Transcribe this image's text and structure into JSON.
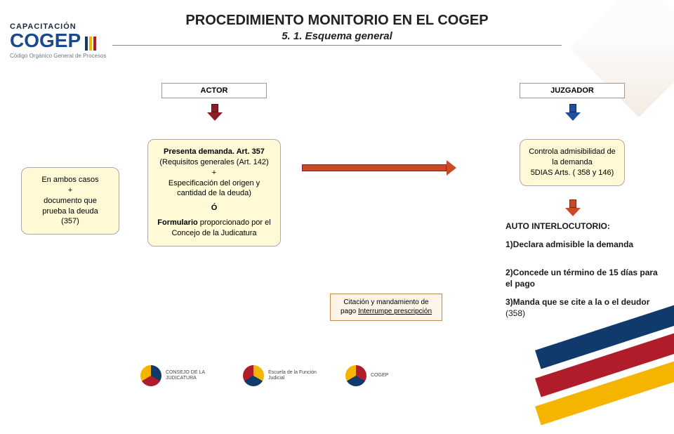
{
  "logo": {
    "line1": "CAPACITACIÓN",
    "line2": "COGEP",
    "tagline": "Código Orgánico General de Procesos",
    "bar_colors": [
      "#0f3a6b",
      "#f5b400",
      "#b11c2a"
    ]
  },
  "title": "PROCEDIMIENTO MONITORIO EN EL COGEP",
  "subtitle": "5. 1. Esquema general",
  "headers": {
    "actor": "ACTOR",
    "juzgador": "JUZGADOR"
  },
  "left_note": "En ambos casos\n+\ndocumento que\nprueba la deuda\n(357)",
  "mid_note_top": "Presenta demanda. Art. 357\n(Requisitos generales (Art. 142)\n+\nEspecificación del origen y cantidad de la deuda)",
  "mid_sep": "Ó",
  "mid_note_bottom": "Formulario proporcionado por el Concejo de la Judicatura",
  "right_note": "Controla admisibilidad de la demanda\n5DIAS Arts. ( 358 y 146)",
  "auto_title": "AUTO INTERLOCUTORIO:",
  "auto_items": [
    "1)Declara admisible la demanda",
    "2)Concede un término de 15 días para el pago",
    "3)Manda que se cite a la o el deudor\n(358)"
  ],
  "citacion": "Citación y mandamiento de pago Interrumpe prescripción",
  "arrows": {
    "actor_down": {
      "fill": "#8a1d26",
      "border": "#5a1018"
    },
    "juzgador_down": {
      "fill": "#1f4f9c",
      "border": "#0d2a55"
    },
    "long_right": {
      "fill": "#c94a28",
      "border": "#7a2a16",
      "length": 220
    },
    "right_down": {
      "fill": "#c94a28",
      "border": "#7a2a16"
    }
  },
  "footer": {
    "logos": [
      {
        "name": "CONSEJO DE LA JUDICATURA",
        "colors": [
          "#0f3a6b",
          "#b11c2a",
          "#f5b400"
        ]
      },
      {
        "name": "Escuela de la Función Judicial",
        "colors": [
          "#f5b400",
          "#0f3a6b",
          "#b11c2a"
        ]
      },
      {
        "name": "COGEP",
        "colors": [
          "#b11c2a",
          "#0f3a6b",
          "#f5b400"
        ]
      }
    ]
  },
  "colors": {
    "note_bg": "#fff9d6",
    "title_color": "#222222",
    "box_border": "#999999"
  }
}
